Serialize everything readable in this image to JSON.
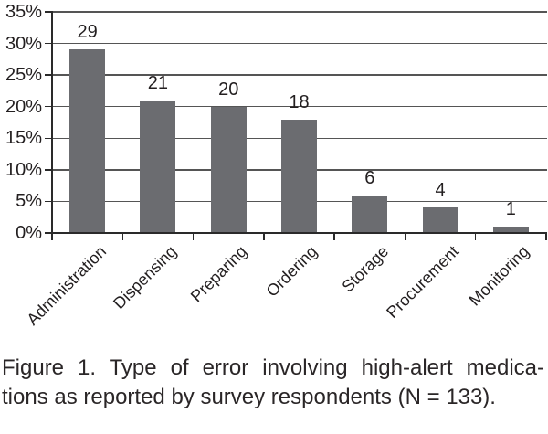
{
  "figure": {
    "caption": {
      "line1": "Figure 1. Type of error involving high-alert medica-",
      "line2": "tions as reported by survey respondents (N = 133)."
    }
  },
  "chart_data": {
    "type": "bar",
    "title": "",
    "xlabel": "",
    "ylabel": "",
    "categories": [
      "Administration",
      "Dispensing",
      "Preparing",
      "Ordering",
      "Storage",
      "Procurement",
      "Monitoring"
    ],
    "values": [
      29,
      21,
      20,
      18,
      6,
      4,
      1
    ],
    "data_labels": [
      "29",
      "21",
      "20",
      "18",
      "6",
      "4",
      "1"
    ],
    "ylim": [
      0,
      35
    ],
    "ytick_step": 5,
    "ytick_labels": [
      "0%",
      "5%",
      "10%",
      "15%",
      "20%",
      "25%",
      "30%",
      "35%"
    ],
    "grid": true,
    "legend": false,
    "colors": {
      "bar": "#6b6c70",
      "grid": "#555555",
      "axis": "#2a2a2a",
      "text": "#231f20"
    }
  }
}
